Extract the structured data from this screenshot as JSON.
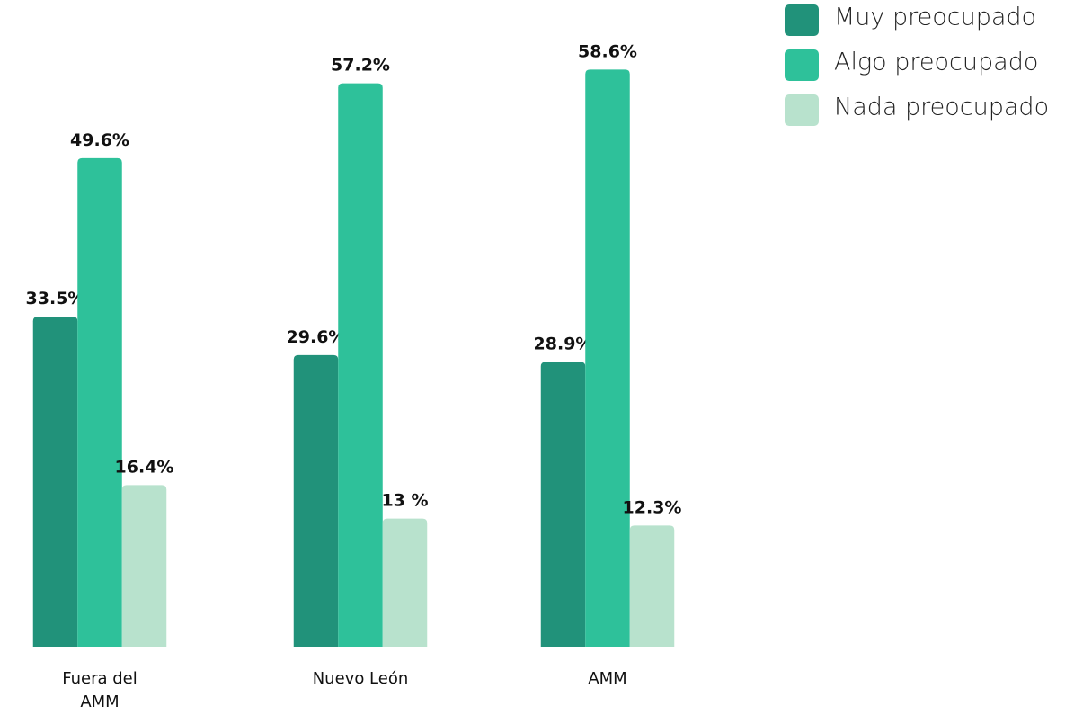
{
  "chart_data": {
    "type": "bar",
    "categories": [
      "Fuera del AMM",
      "Nuevo León",
      "AMM"
    ],
    "series": [
      {
        "name": "Muy preocupado",
        "color": "#21927a",
        "values": [
          33.5,
          29.6,
          28.9
        ],
        "value_labels": [
          "33.5%",
          "29.6%",
          "28.9%"
        ]
      },
      {
        "name": "Algo preocupado",
        "color": "#2ec19a",
        "values": [
          49.6,
          57.2,
          58.6
        ],
        "value_labels": [
          "49.6%",
          "57.2%",
          "58.6%"
        ]
      },
      {
        "name": "Nada preocupado",
        "color": "#b8e2cd",
        "values": [
          16.4,
          13,
          12.3
        ],
        "value_labels": [
          "16.4%",
          "13 %",
          "12.3%"
        ]
      }
    ],
    "ylim": [
      0,
      60
    ],
    "legend": "top-right"
  }
}
